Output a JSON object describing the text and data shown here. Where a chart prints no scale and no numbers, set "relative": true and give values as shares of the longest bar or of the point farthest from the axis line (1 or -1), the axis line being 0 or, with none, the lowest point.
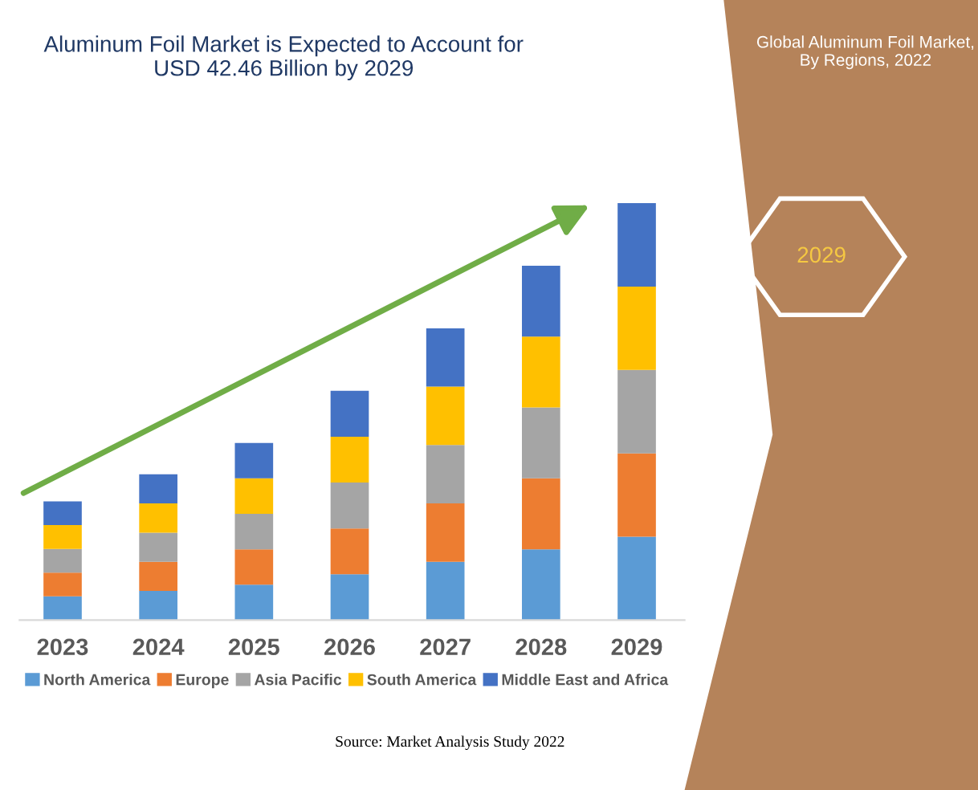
{
  "chart_data": {
    "type": "bar",
    "title": "Aluminum Foil Market is Expected to Account for\nUSD 42.46 Billion by 2029",
    "categories": [
      "2023",
      "2024",
      "2025",
      "2026",
      "2027",
      "2028",
      "2029"
    ],
    "stacked": true,
    "relative": true,
    "legend": "bottom",
    "grid": false,
    "series": [
      {
        "name": "North America",
        "color": "#5b9bd5",
        "values": [
          0.057,
          0.07,
          0.085,
          0.11,
          0.14,
          0.17,
          0.2
        ]
      },
      {
        "name": "Europe",
        "color": "#ed7d31",
        "values": [
          0.057,
          0.07,
          0.085,
          0.11,
          0.14,
          0.17,
          0.2
        ]
      },
      {
        "name": "Asia Pacific",
        "color": "#a5a5a5",
        "values": [
          0.057,
          0.07,
          0.085,
          0.11,
          0.14,
          0.17,
          0.2
        ]
      },
      {
        "name": "South America",
        "color": "#ffc000",
        "values": [
          0.057,
          0.07,
          0.085,
          0.11,
          0.14,
          0.17,
          0.2
        ]
      },
      {
        "name": "Middle East and Africa",
        "color": "#4472c4",
        "values": [
          0.057,
          0.07,
          0.085,
          0.11,
          0.14,
          0.17,
          0.2
        ]
      }
    ],
    "annotations": [
      "Source: Market Analysis Study 2022",
      "Global Aluminum Foil Market,\nBy Regions, 2022",
      "2029"
    ]
  }
}
